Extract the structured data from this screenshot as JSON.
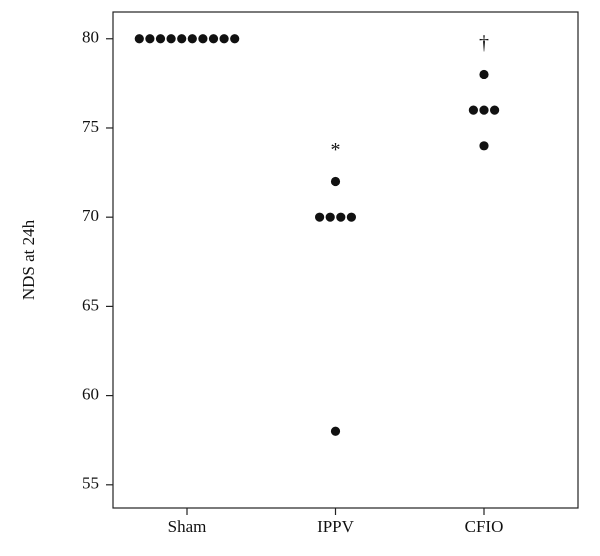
{
  "chart_data": {
    "type": "dot",
    "y_label": "NDS at 24h",
    "categories": [
      "Sham",
      "IPPV",
      "CFIO"
    ],
    "values": [
      [
        80,
        80,
        80,
        80,
        80,
        80,
        80,
        80,
        80,
        80
      ],
      [
        72,
        70,
        70,
        70,
        70,
        58
      ],
      [
        78,
        76,
        76,
        76,
        74
      ]
    ],
    "annotations": [
      {
        "text": "*",
        "category": "IPPV"
      },
      {
        "text": "†",
        "category": "CFIO"
      }
    ],
    "color": "#111111",
    "ylim": [
      53.7,
      81.5
    ],
    "yticks": [
      55,
      60,
      65,
      70,
      75,
      80
    ]
  }
}
